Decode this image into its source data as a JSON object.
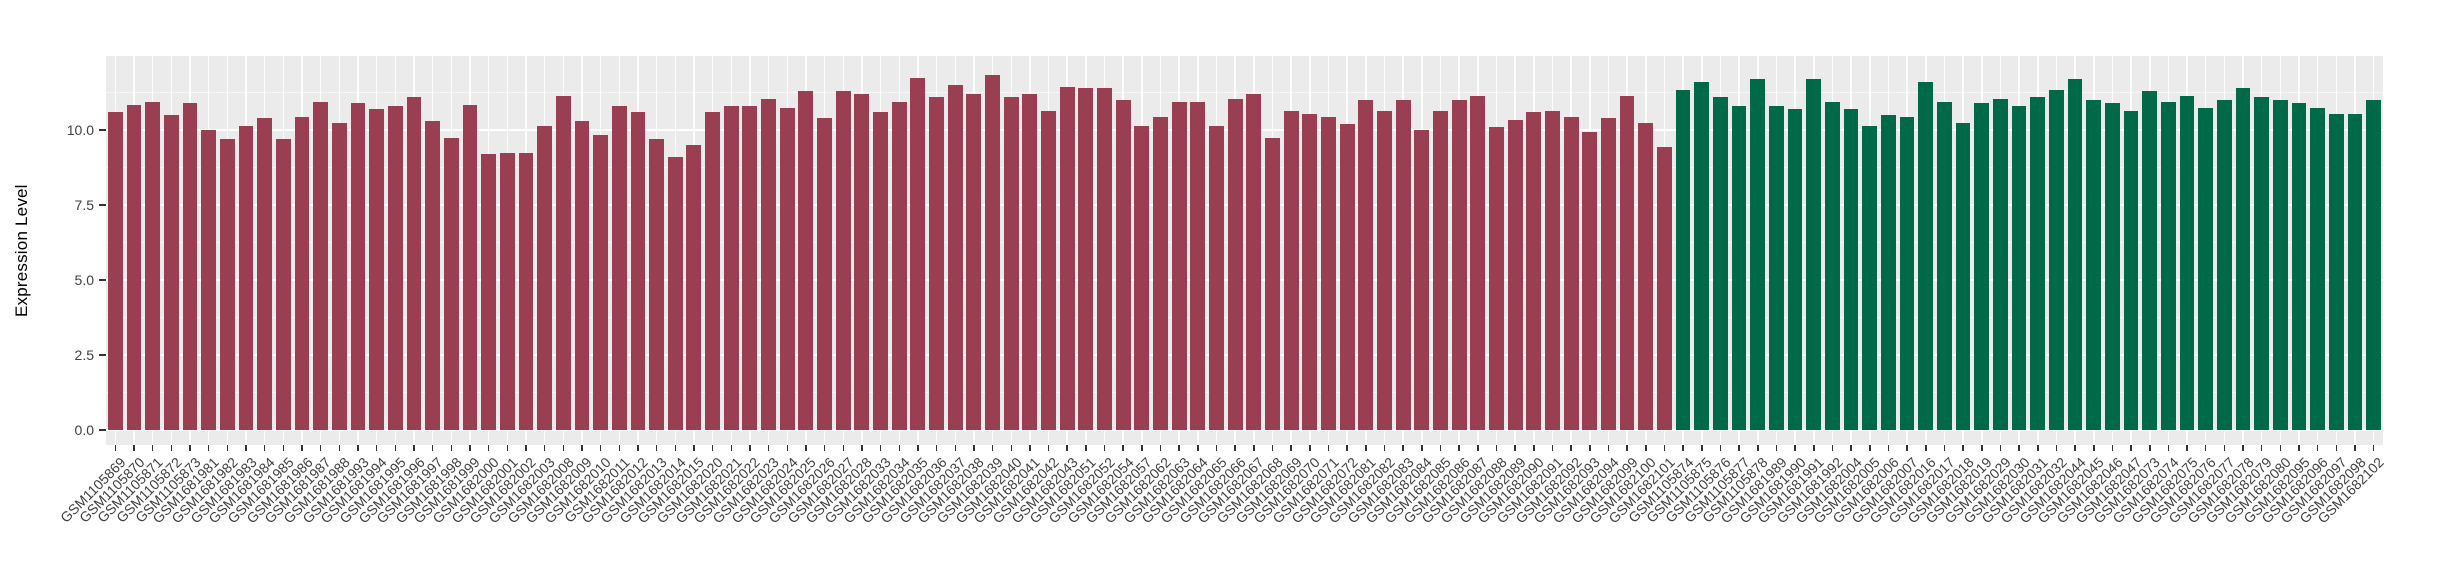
{
  "chart_data": {
    "type": "bar",
    "title": "",
    "xlabel": "",
    "ylabel": "Expression Level",
    "ylim": [
      0,
      12.5
    ],
    "yticks": [
      0,
      2.5,
      5,
      7.5,
      10
    ],
    "ytick_labels": [
      "0.0",
      "2.5",
      "5.0",
      "7.5",
      "10.0"
    ],
    "y_minor_ticks": [
      1.25,
      3.75,
      6.25,
      8.75,
      11.25
    ],
    "grid": "white major and minor horizontal gridlines plus per-category vertical gridlines on grey panel",
    "legend_position": "none",
    "panel_background": "#EBEBEB",
    "bar_groups": [
      {
        "name": "group-1",
        "color": "#9A3F51",
        "start_index": 0,
        "end_index": 83
      },
      {
        "name": "group-2",
        "color": "#006947",
        "start_index": 84,
        "end_index": 121
      }
    ],
    "categories": [
      "GSM1105869",
      "GSM1105870",
      "GSM1105871",
      "GSM1105872",
      "GSM1105873",
      "GSM1681981",
      "GSM1681982",
      "GSM1681983",
      "GSM1681984",
      "GSM1681985",
      "GSM1681986",
      "GSM1681987",
      "GSM1681988",
      "GSM1681993",
      "GSM1681994",
      "GSM1681995",
      "GSM1681996",
      "GSM1681997",
      "GSM1681998",
      "GSM1681999",
      "GSM1682000",
      "GSM1682001",
      "GSM1682002",
      "GSM1682003",
      "GSM1682008",
      "GSM1682009",
      "GSM1682010",
      "GSM1682011",
      "GSM1682012",
      "GSM1682013",
      "GSM1682014",
      "GSM1682015",
      "GSM1682020",
      "GSM1682021",
      "GSM1682022",
      "GSM1682023",
      "GSM1682024",
      "GSM1682025",
      "GSM1682026",
      "GSM1682027",
      "GSM1682028",
      "GSM1682033",
      "GSM1682034",
      "GSM1682035",
      "GSM1682036",
      "GSM1682037",
      "GSM1682038",
      "GSM1682039",
      "GSM1682040",
      "GSM1682041",
      "GSM1682042",
      "GSM1682043",
      "GSM1682051",
      "GSM1682052",
      "GSM1682054",
      "GSM1682057",
      "GSM1682062",
      "GSM1682063",
      "GSM1682064",
      "GSM1682065",
      "GSM1682066",
      "GSM1682067",
      "GSM1682068",
      "GSM1682069",
      "GSM1682070",
      "GSM1682071",
      "GSM1682072",
      "GSM1682081",
      "GSM1682082",
      "GSM1682083",
      "GSM1682084",
      "GSM1682085",
      "GSM1682086",
      "GSM1682087",
      "GSM1682088",
      "GSM1682089",
      "GSM1682090",
      "GSM1682091",
      "GSM1682092",
      "GSM1682093",
      "GSM1682094",
      "GSM1682099",
      "GSM1682100",
      "GSM1682101",
      "GSM1105874",
      "GSM1105875",
      "GSM1105876",
      "GSM1105877",
      "GSM1105878",
      "GSM1681989",
      "GSM1681990",
      "GSM1681991",
      "GSM1681992",
      "GSM1682004",
      "GSM1682005",
      "GSM1682006",
      "GSM1682007",
      "GSM1682016",
      "GSM1682017",
      "GSM1682018",
      "GSM1682019",
      "GSM1682029",
      "GSM1682030",
      "GSM1682031",
      "GSM1682032",
      "GSM1682044",
      "GSM1682045",
      "GSM1682046",
      "GSM1682047",
      "GSM1682073",
      "GSM1682074",
      "GSM1682075",
      "GSM1682076",
      "GSM1682077",
      "GSM1682078",
      "GSM1682079",
      "GSM1682080",
      "GSM1682095",
      "GSM1682096",
      "GSM1682097",
      "GSM1682098",
      "GSM1682102"
    ],
    "values": [
      10.6,
      10.85,
      10.95,
      10.5,
      10.9,
      10.0,
      9.7,
      10.15,
      10.4,
      9.7,
      10.45,
      10.95,
      10.25,
      10.9,
      10.7,
      10.8,
      11.1,
      10.3,
      9.75,
      10.85,
      9.2,
      9.25,
      9.25,
      10.15,
      11.15,
      10.3,
      9.85,
      10.8,
      10.6,
      9.7,
      9.1,
      9.5,
      10.6,
      10.8,
      10.8,
      11.05,
      10.75,
      11.3,
      10.4,
      11.3,
      11.2,
      10.6,
      10.95,
      11.75,
      11.1,
      11.5,
      11.2,
      11.85,
      11.1,
      11.2,
      10.65,
      11.45,
      11.4,
      11.4,
      11.0,
      10.15,
      10.45,
      10.95,
      10.95,
      10.15,
      11.05,
      11.2,
      9.75,
      10.65,
      10.55,
      10.45,
      10.2,
      11.0,
      10.65,
      11.0,
      10.0,
      10.65,
      11.0,
      11.15,
      10.1,
      10.35,
      10.6,
      10.65,
      10.45,
      9.95,
      10.4,
      11.15,
      10.25,
      9.45,
      11.35,
      11.6,
      11.1,
      10.8,
      11.7,
      10.8,
      10.7,
      11.7,
      10.95,
      10.7,
      10.15,
      10.5,
      10.45,
      11.6,
      10.95,
      10.25,
      10.9,
      11.05,
      10.8,
      11.1,
      11.35,
      11.7,
      11.0,
      10.9,
      10.65,
      11.3,
      10.95,
      11.15,
      10.75,
      11.0,
      11.4,
      11.1,
      11.0,
      10.9,
      10.75,
      10.55,
      10.55,
      11.0
    ]
  }
}
